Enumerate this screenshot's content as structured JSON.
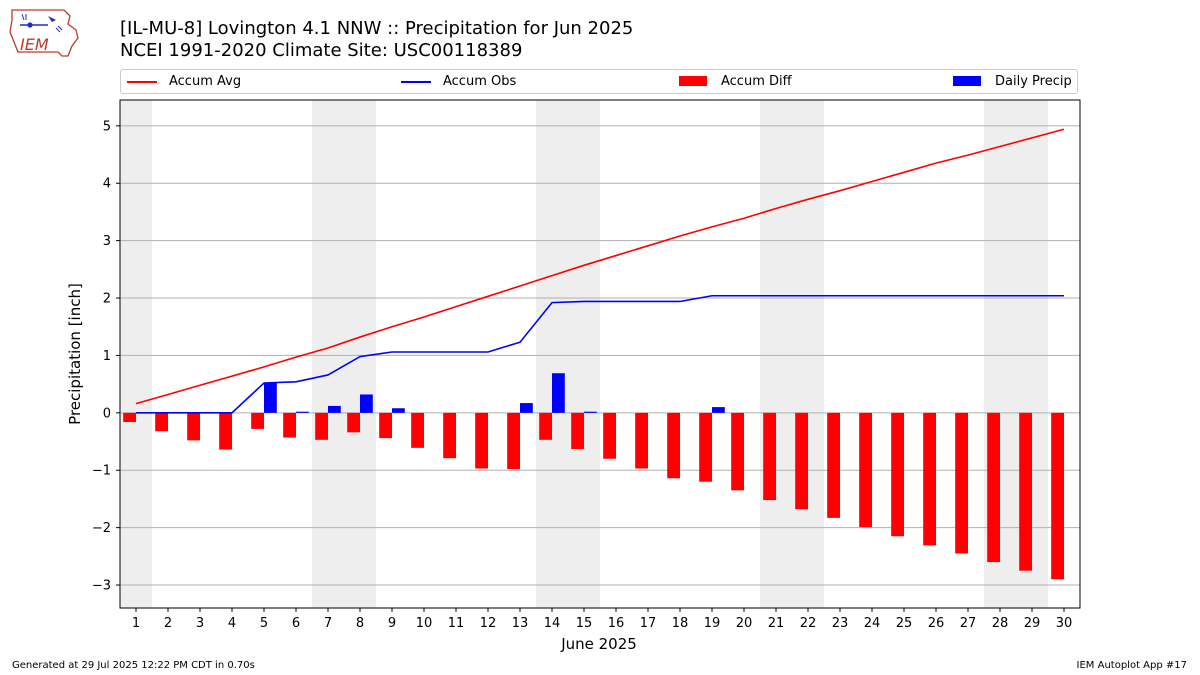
{
  "header": {
    "title_line1": "[IL-MU-8] Lovington 4.1 NNW :: Precipitation for Jun 2025",
    "title_line2": "NCEI 1991-2020 Climate Site: USC00118389",
    "logo_text": "IEM"
  },
  "footer": {
    "generated": "Generated at 29 Jul 2025 12:22 PM CDT in 0.70s",
    "app": "IEM Autoplot App #17"
  },
  "colors": {
    "avg": "#ff0000",
    "obs": "#0000ff",
    "diff": "#ff0000",
    "daily": "#0000ff",
    "weekend_band": "#eeeeee",
    "grid": "#b0b0b0"
  },
  "chart_data": {
    "type": "bar",
    "xlabel": "June 2025",
    "ylabel": "Precipitation [inch]",
    "x": [
      1,
      2,
      3,
      4,
      5,
      6,
      7,
      8,
      9,
      10,
      11,
      12,
      13,
      14,
      15,
      16,
      17,
      18,
      19,
      20,
      21,
      22,
      23,
      24,
      25,
      26,
      27,
      28,
      29,
      30
    ],
    "xlim": [
      0.5,
      30.5
    ],
    "ylim": [
      -3.4,
      5.45
    ],
    "yticks": [
      -3,
      -2,
      -1,
      0,
      1,
      2,
      3,
      4,
      5
    ],
    "grid": "horizontal",
    "legend_placement": "top",
    "shaded_days": [
      1,
      7,
      8,
      14,
      15,
      21,
      22,
      28,
      29
    ],
    "series": [
      {
        "name": "Accum Avg",
        "kind": "line",
        "values": [
          0.16,
          0.32,
          0.48,
          0.64,
          0.8,
          0.97,
          1.13,
          1.32,
          1.5,
          1.67,
          1.85,
          2.03,
          2.21,
          2.39,
          2.57,
          2.74,
          2.91,
          3.08,
          3.24,
          3.39,
          3.56,
          3.72,
          3.87,
          4.03,
          4.19,
          4.35,
          4.49,
          4.64,
          4.79,
          4.94
        ]
      },
      {
        "name": "Accum Obs",
        "kind": "line",
        "values": [
          0.0,
          0.0,
          0.0,
          0.0,
          0.52,
          0.54,
          0.66,
          0.98,
          1.06,
          1.06,
          1.06,
          1.06,
          1.23,
          1.92,
          1.94,
          1.94,
          1.94,
          1.94,
          2.04,
          2.04,
          2.04,
          2.04,
          2.04,
          2.04,
          2.04,
          2.04,
          2.04,
          2.04,
          2.04,
          2.04
        ]
      },
      {
        "name": "Accum Diff",
        "kind": "bar",
        "values": [
          -0.16,
          -0.32,
          -0.48,
          -0.64,
          -0.28,
          -0.43,
          -0.47,
          -0.34,
          -0.44,
          -0.61,
          -0.79,
          -0.97,
          -0.98,
          -0.47,
          -0.63,
          -0.8,
          -0.97,
          -1.14,
          -1.2,
          -1.35,
          -1.52,
          -1.68,
          -1.83,
          -1.99,
          -2.15,
          -2.31,
          -2.45,
          -2.6,
          -2.75,
          -2.9
        ]
      },
      {
        "name": "Daily Precip",
        "kind": "bar",
        "values": [
          0,
          0,
          0,
          0,
          0.52,
          0.02,
          0.12,
          0.32,
          0.08,
          0,
          0,
          0,
          0.17,
          0.69,
          0.02,
          0,
          0,
          0,
          0.1,
          0,
          0,
          0,
          0,
          0,
          0,
          0,
          0,
          0,
          0,
          0
        ]
      }
    ]
  }
}
